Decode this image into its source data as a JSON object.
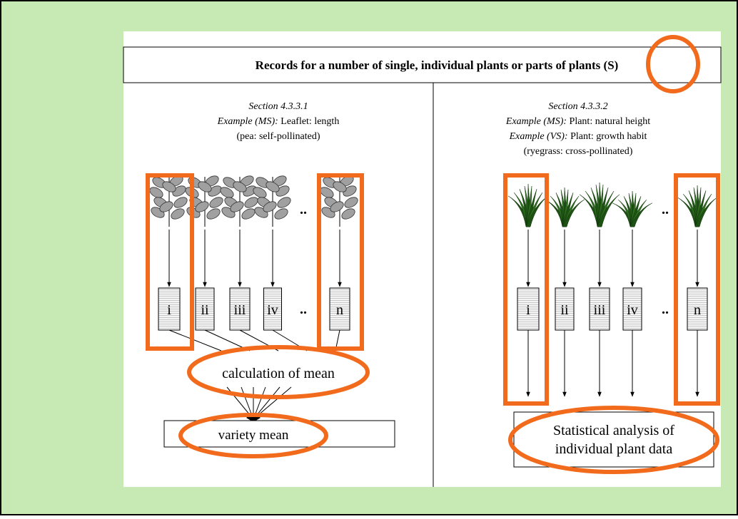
{
  "title": "Records for a number of single, individual plants or parts of plants (S)",
  "left": {
    "section": "Section 4.3.3.1",
    "example_label": "Example (MS):",
    "example_text": "Leaflet: length",
    "note": "(pea: self-pollinated)",
    "boxes": [
      "i",
      "ii",
      "iii",
      "iv",
      "n"
    ],
    "calculation": "calculation of mean",
    "result": "variety mean"
  },
  "right": {
    "section": "Section 4.3.3.2",
    "examples": [
      {
        "label": "Example (MS):",
        "text": "Plant: natural height"
      },
      {
        "label": "Example (VS):",
        "text": "Plant: growth habit"
      }
    ],
    "note": "(ryegrass: cross-pollinated)",
    "boxes": [
      "i",
      "ii",
      "iii",
      "iv",
      "n"
    ],
    "result_lines": [
      "Statistical analysis of",
      "individual plant data"
    ]
  },
  "ellipsis": ".."
}
